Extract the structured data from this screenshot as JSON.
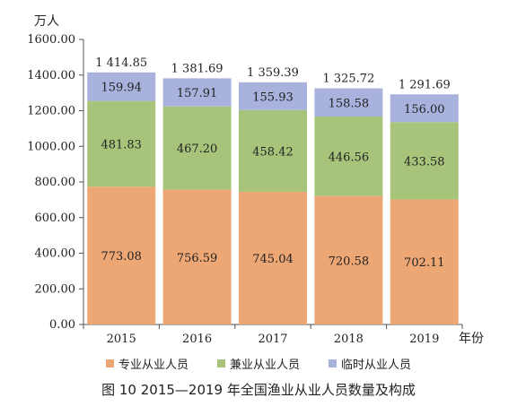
{
  "chart_data": {
    "type": "bar",
    "stacked": true,
    "y_unit_label": "万人",
    "x_unit_label": "年份",
    "categories": [
      "2015",
      "2016",
      "2017",
      "2018",
      "2019"
    ],
    "series": [
      {
        "name": "专业从业人员",
        "color": "#eda774",
        "values": [
          773.08,
          756.59,
          745.04,
          720.58,
          702.11
        ],
        "labels": [
          "773.08",
          "756.59",
          "745.04",
          "720.58",
          "702.11"
        ]
      },
      {
        "name": "兼业从业人员",
        "color": "#a8c47a",
        "values": [
          481.83,
          467.2,
          458.42,
          446.56,
          433.58
        ],
        "labels": [
          "481.83",
          "467.20",
          "458.42",
          "446.56",
          "433.58"
        ]
      },
      {
        "name": "临时从业人员",
        "color": "#a9b1dd",
        "values": [
          159.94,
          157.91,
          155.93,
          158.58,
          156.0
        ],
        "labels": [
          "159.94",
          "157.91",
          "155.93",
          "158.58",
          "156.00"
        ]
      }
    ],
    "totals": [
      1414.85,
      1381.69,
      1359.39,
      1325.72,
      1291.69
    ],
    "total_labels": [
      "1 414.85",
      "1 381.69",
      "1 359.39",
      "1 325.72",
      "1 291.69"
    ],
    "ylim": [
      0,
      1600
    ],
    "yticks": [
      "0.00",
      "200.00",
      "400.00",
      "600.00",
      "800.00",
      "1000.00",
      "1200.00",
      "1400.00",
      "1600.00"
    ],
    "grid": false,
    "legend_position": "bottom"
  },
  "caption": "图 10    2015—2019 年全国渔业从业人员数量及构成"
}
